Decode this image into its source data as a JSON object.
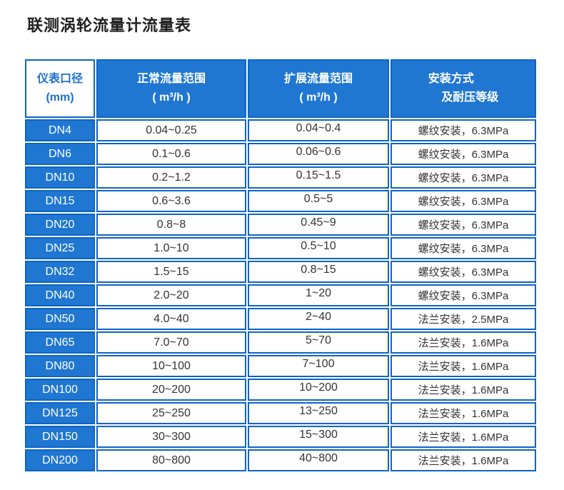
{
  "page": {
    "title": "联测涡轮流量计流量表"
  },
  "colors": {
    "cell_fill_blue": "#2077d2",
    "border_blue": "#0e64c6",
    "header_text_blue": "#1b6fd0",
    "data_text": "#333333",
    "title_text": "#1f1f1f"
  },
  "table": {
    "headers": {
      "diameter": {
        "line1": "仪表口径",
        "line2": "(mm)"
      },
      "normal_range": {
        "line1": "正常流量范围",
        "line2": "( m³/h )"
      },
      "extended_range": {
        "line1": "扩展流量范围",
        "line2": "( m³/h )"
      },
      "install": {
        "line1": "安装方式",
        "line2": "及耐压等级"
      }
    },
    "rows": [
      {
        "dn": "DN4",
        "normal": "0.04~0.25",
        "extended": "0.04~0.4",
        "install": "螺纹安装，6.3MPa"
      },
      {
        "dn": "DN6",
        "normal": "0.1~0.6",
        "extended": "0.06~0.6",
        "install": "螺纹安装，6.3MPa"
      },
      {
        "dn": "DN10",
        "normal": "0.2~1.2",
        "extended": "0.15~1.5",
        "install": "螺纹安装，6.3MPa"
      },
      {
        "dn": "DN15",
        "normal": "0.6~3.6",
        "extended": "0.5~5",
        "install": "螺纹安装，6.3MPa"
      },
      {
        "dn": "DN20",
        "normal": "0.8~8",
        "extended": "0.45~9",
        "install": "螺纹安装，6.3MPa"
      },
      {
        "dn": "DN25",
        "normal": "1.0~10",
        "extended": "0.5~10",
        "install": "螺纹安装，6.3MPa"
      },
      {
        "dn": "DN32",
        "normal": "1.5~15",
        "extended": "0.8~15",
        "install": "螺纹安装，6.3MPa"
      },
      {
        "dn": "DN40",
        "normal": "2.0~20",
        "extended": "1~20",
        "install": "螺纹安装，6.3MPa"
      },
      {
        "dn": "DN50",
        "normal": "4.0~40",
        "extended": "2~40",
        "install": "法兰安装，2.5MPa"
      },
      {
        "dn": "DN65",
        "normal": "7.0~70",
        "extended": "5~70",
        "install": "法兰安装，1.6MPa"
      },
      {
        "dn": "DN80",
        "normal": "10~100",
        "extended": "7~100",
        "install": "法兰安装，1.6MPa"
      },
      {
        "dn": "DN100",
        "normal": "20~200",
        "extended": "10~200",
        "install": "法兰安装，1.6MPa"
      },
      {
        "dn": "DN125",
        "normal": "25~250",
        "extended": "13~250",
        "install": "法兰安装，1.6MPa"
      },
      {
        "dn": "DN150",
        "normal": "30~300",
        "extended": "15~300",
        "install": "法兰安装，1.6MPa"
      },
      {
        "dn": "DN200",
        "normal": "80~800",
        "extended": "40~800",
        "install": "法兰安装，1.6MPa"
      }
    ]
  }
}
